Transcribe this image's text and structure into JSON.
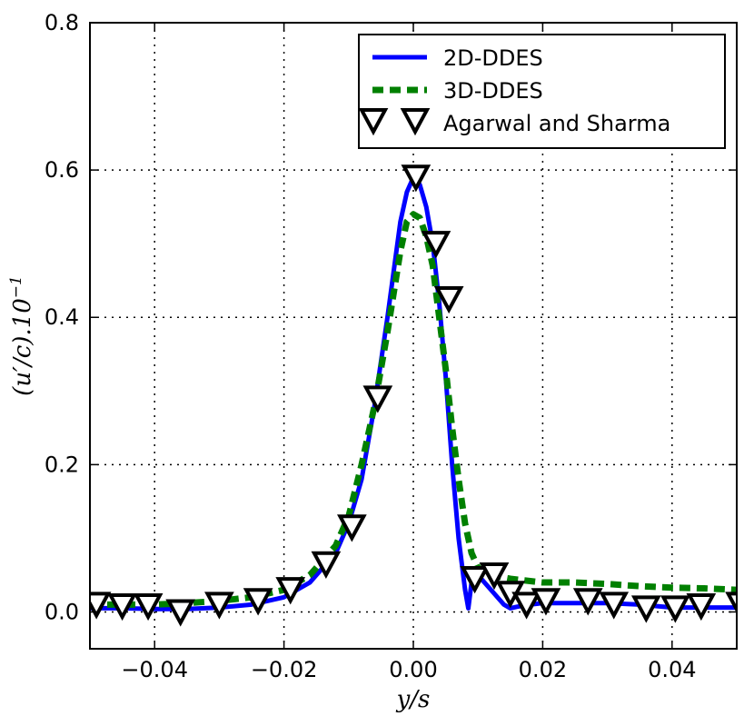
{
  "chart_data": {
    "type": "line",
    "title": "",
    "xlabel": "y/s",
    "ylabel": "(u′/c).10",
    "ylabel_exponent": "−1",
    "xlim": [
      -0.05,
      0.05
    ],
    "ylim": [
      -0.05,
      0.8
    ],
    "grid": true,
    "legend_position": "top-right",
    "x_ticks": [
      -0.04,
      -0.02,
      0.0,
      0.02,
      0.04
    ],
    "x_tick_labels": [
      "−0.04",
      "−0.02",
      "0.00",
      "0.02",
      "0.04"
    ],
    "y_ticks": [
      0.0,
      0.2,
      0.4,
      0.6,
      0.8
    ],
    "y_tick_labels": [
      "0.0",
      "0.2",
      "0.4",
      "0.6",
      "0.8"
    ],
    "series": [
      {
        "name": "2D-DDES",
        "style": "solid-line",
        "color": "#0000ff",
        "x": [
          -0.05,
          -0.045,
          -0.04,
          -0.035,
          -0.03,
          -0.025,
          -0.02,
          -0.016,
          -0.012,
          -0.01,
          -0.008,
          -0.006,
          -0.004,
          -0.002,
          -0.001,
          0.0,
          0.001,
          0.002,
          0.003,
          0.004,
          0.005,
          0.006,
          0.007,
          0.008,
          0.0085,
          0.009,
          0.01,
          0.012,
          0.014,
          0.015,
          0.016,
          0.018,
          0.02,
          0.025,
          0.03,
          0.035,
          0.04,
          0.045,
          0.05
        ],
        "y": [
          0.005,
          0.005,
          0.004,
          0.004,
          0.006,
          0.01,
          0.02,
          0.04,
          0.08,
          0.12,
          0.18,
          0.28,
          0.4,
          0.53,
          0.57,
          0.59,
          0.58,
          0.55,
          0.5,
          0.42,
          0.32,
          0.2,
          0.1,
          0.03,
          0.005,
          0.04,
          0.05,
          0.03,
          0.01,
          0.005,
          0.007,
          0.01,
          0.012,
          0.012,
          0.012,
          0.01,
          0.006,
          0.006,
          0.006
        ]
      },
      {
        "name": "3D-DDES",
        "style": "dashed-line",
        "color": "#008000",
        "x": [
          -0.05,
          -0.045,
          -0.04,
          -0.035,
          -0.03,
          -0.025,
          -0.02,
          -0.016,
          -0.012,
          -0.01,
          -0.008,
          -0.006,
          -0.004,
          -0.002,
          -0.001,
          0.0,
          0.001,
          0.002,
          0.003,
          0.004,
          0.005,
          0.006,
          0.007,
          0.008,
          0.009,
          0.01,
          0.012,
          0.015,
          0.02,
          0.025,
          0.03,
          0.035,
          0.04,
          0.045,
          0.05
        ],
        "y": [
          0.01,
          0.01,
          0.01,
          0.012,
          0.015,
          0.02,
          0.03,
          0.05,
          0.09,
          0.13,
          0.2,
          0.28,
          0.38,
          0.49,
          0.53,
          0.54,
          0.535,
          0.51,
          0.47,
          0.4,
          0.33,
          0.25,
          0.18,
          0.12,
          0.08,
          0.06,
          0.05,
          0.045,
          0.04,
          0.04,
          0.038,
          0.035,
          0.033,
          0.032,
          0.03
        ]
      },
      {
        "name": "Agarwal and Sharma",
        "style": "markers-triangle-down",
        "color": "#000000",
        "x": [
          -0.049,
          -0.045,
          -0.041,
          -0.036,
          -0.03,
          -0.024,
          -0.019,
          -0.0135,
          -0.0095,
          -0.0055,
          0.0004,
          0.0035,
          0.0055,
          0.0095,
          0.0125,
          0.015,
          0.0175,
          0.0205,
          0.027,
          0.031,
          0.036,
          0.0405,
          0.0445,
          0.0505
        ],
        "y": [
          0.01,
          0.008,
          0.008,
          0.0,
          0.01,
          0.015,
          0.03,
          0.065,
          0.115,
          0.29,
          0.59,
          0.5,
          0.425,
          0.045,
          0.05,
          0.025,
          0.01,
          0.015,
          0.015,
          0.01,
          0.005,
          0.005,
          0.008,
          0.01
        ]
      }
    ]
  }
}
